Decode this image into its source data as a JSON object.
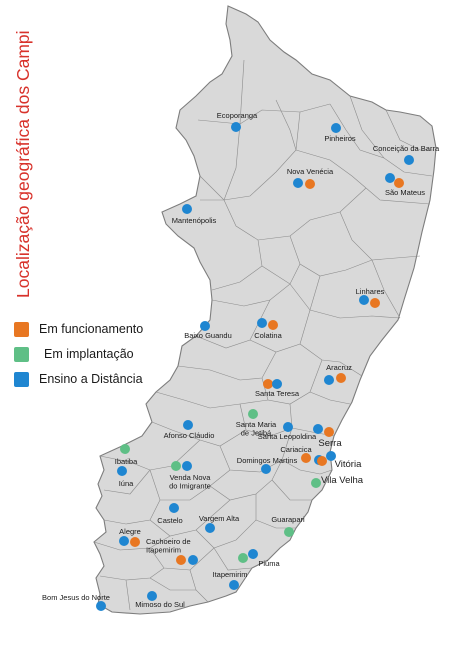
{
  "title": "Localização geográfica dos Campi",
  "colors": {
    "map_fill": "#d9d9d9",
    "map_stroke": "#8c8c8c",
    "funcionamento": "#e87722",
    "implantacao": "#5fbf86",
    "distancia": "#1f86d1",
    "title": "#d8322b"
  },
  "legend": [
    {
      "label": "Em funcionamento",
      "color_key": "funcionamento"
    },
    {
      "label": "Em implantação",
      "color_key": "implantacao"
    },
    {
      "label": "Ensino a Distância",
      "color_key": "distancia"
    }
  ],
  "cities": [
    {
      "name": "Ecoporanga",
      "status": [
        "distancia"
      ]
    },
    {
      "name": "Pinheiros",
      "status": [
        "distancia"
      ]
    },
    {
      "name": "Conceição da Barra",
      "status": [
        "distancia"
      ]
    },
    {
      "name": "Nova Venécia",
      "status": [
        "distancia",
        "funcionamento"
      ]
    },
    {
      "name": "São Mateus",
      "status": [
        "distancia",
        "funcionamento"
      ]
    },
    {
      "name": "Mantenópolis",
      "status": [
        "distancia"
      ]
    },
    {
      "name": "Linhares",
      "status": [
        "distancia",
        "funcionamento"
      ]
    },
    {
      "name": "Baixo Guandu",
      "status": [
        "distancia"
      ]
    },
    {
      "name": "Colatina",
      "status": [
        "distancia",
        "funcionamento"
      ]
    },
    {
      "name": "Aracruz",
      "status": [
        "distancia",
        "funcionamento"
      ]
    },
    {
      "name": "Santa Teresa",
      "status": [
        "funcionamento",
        "distancia"
      ]
    },
    {
      "name": "Santa Maria de Jetibá",
      "status": [
        "implantacao"
      ]
    },
    {
      "name": "Afonso Cláudio",
      "status": [
        "distancia"
      ]
    },
    {
      "name": "Santa Leopoldina",
      "status": [
        "distancia"
      ]
    },
    {
      "name": "Serra",
      "status": [
        "distancia",
        "funcionamento"
      ]
    },
    {
      "name": "Cariacica",
      "status": [
        "funcionamento",
        "distancia"
      ]
    },
    {
      "name": "Vitória",
      "status": [
        "funcionamento",
        "distancia"
      ]
    },
    {
      "name": "Ibatiba",
      "status": [
        "implantacao"
      ]
    },
    {
      "name": "Iúna",
      "status": [
        "distancia"
      ]
    },
    {
      "name": "Venda Nova do Imigrante",
      "status": [
        "implantacao",
        "distancia"
      ]
    },
    {
      "name": "Domingos Martins",
      "status": [
        "distancia"
      ]
    },
    {
      "name": "Vila Velha",
      "status": [
        "implantacao"
      ]
    },
    {
      "name": "Castelo",
      "status": [
        "distancia"
      ]
    },
    {
      "name": "Vargem Alta",
      "status": [
        "distancia"
      ]
    },
    {
      "name": "Guarapari",
      "status": [
        "implantacao"
      ]
    },
    {
      "name": "Alegre",
      "status": [
        "distancia",
        "funcionamento"
      ]
    },
    {
      "name": "Cachoeiro de Itapemirim",
      "status": [
        "funcionamento",
        "distancia"
      ]
    },
    {
      "name": "Piúma",
      "status": [
        "implantacao",
        "distancia"
      ]
    },
    {
      "name": "Itapemirim",
      "status": [
        "distancia"
      ]
    },
    {
      "name": "Bom Jesus do Norte",
      "status": [
        "distancia"
      ]
    },
    {
      "name": "Mimoso do Sul",
      "status": [
        "distancia"
      ]
    }
  ]
}
